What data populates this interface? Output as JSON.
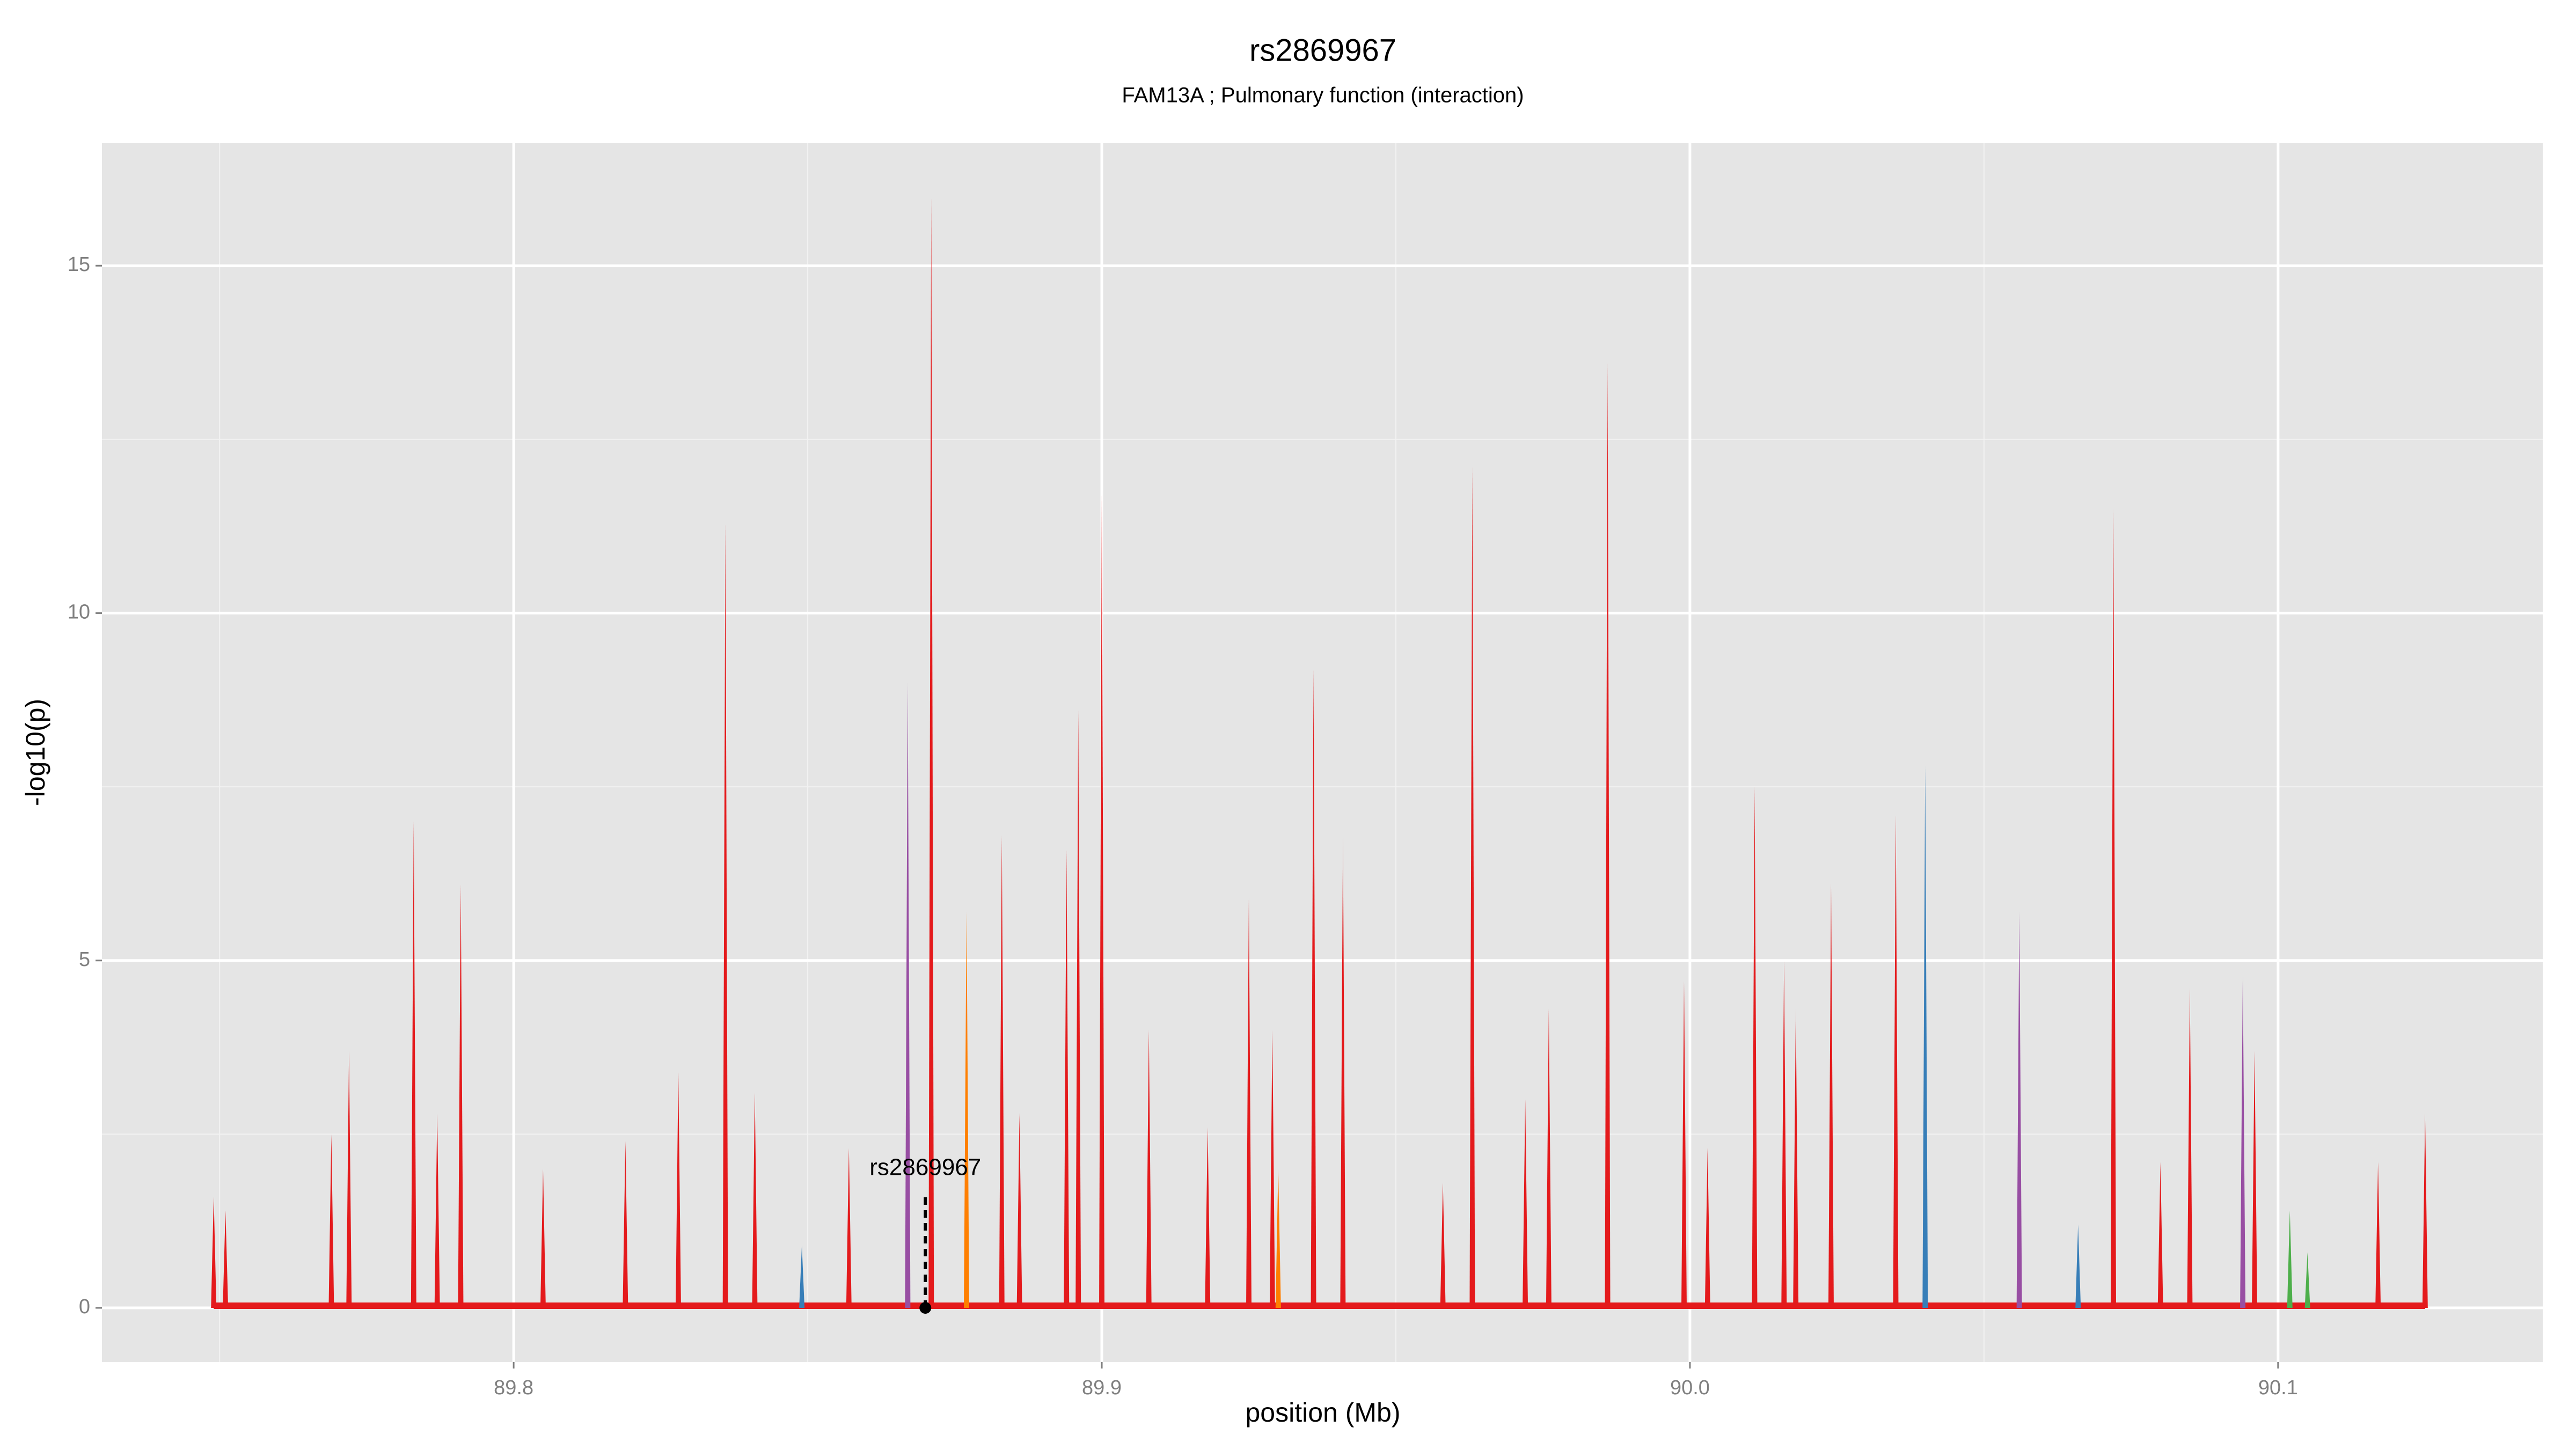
{
  "chart_data": {
    "type": "spike",
    "title": "rs2869967",
    "subtitle": "FAM13A ; Pulmonary function (interaction)",
    "x_label": "position (Mb)",
    "y_label": "-log10(p)",
    "xlim": [
      89.73,
      90.145
    ],
    "ylim": [
      -0.78,
      16.77
    ],
    "xticks": [
      89.8,
      89.9,
      {
        "value": 90,
        "label": "90.0"
      },
      90.1
    ],
    "yticks": [
      0,
      5,
      10,
      15
    ],
    "xminorticks": [
      89.75,
      89.85,
      89.95,
      90.05
    ],
    "yminorticks": [
      2.5,
      7.5,
      12.5
    ],
    "grid": true,
    "series": [
      {
        "color": "#e41a1c",
        "x": [
          89.749,
          89.751,
          89.769,
          89.772,
          89.783,
          89.787,
          89.791,
          89.805,
          89.819,
          89.828,
          89.836,
          89.841,
          89.857,
          89.871,
          89.883,
          89.886,
          89.894,
          89.896,
          89.9,
          89.908,
          89.918,
          89.925,
          89.929,
          89.936,
          89.941,
          89.958,
          89.963,
          89.972,
          89.976,
          89.986,
          89.999,
          90.003,
          90.011,
          90.016,
          90.018,
          90.024,
          90.035,
          90.072,
          90.08,
          90.085,
          90.096,
          90.117,
          90.125
        ],
        "values": [
          1.6,
          1.4,
          2.5,
          3.7,
          7.0,
          2.8,
          6.1,
          2.0,
          2.4,
          3.4,
          11.3,
          3.1,
          2.3,
          16.0,
          6.8,
          2.8,
          6.6,
          8.6,
          11.8,
          4.0,
          2.6,
          5.9,
          4.0,
          9.2,
          6.8,
          1.8,
          12.1,
          3.0,
          4.3,
          13.6,
          4.7,
          2.3,
          7.5,
          5.0,
          4.3,
          6.1,
          7.1,
          11.5,
          2.1,
          4.6,
          3.7,
          2.1,
          2.8
        ]
      },
      {
        "color": "#984ea3",
        "x": [
          89.867,
          90.056,
          90.094
        ],
        "values": [
          9.0,
          5.7,
          4.8
        ]
      },
      {
        "color": "#ff7f00",
        "x": [
          89.877,
          89.93
        ],
        "values": [
          5.7,
          2.0
        ]
      },
      {
        "color": "#377eb8",
        "x": [
          89.849,
          90.04,
          90.066
        ],
        "values": [
          0.9,
          7.8,
          1.2
        ]
      },
      {
        "color": "#4daf4a",
        "x": [
          90.102,
          90.105
        ],
        "values": [
          1.4,
          0.8
        ]
      }
    ],
    "annotation": {
      "text": "rs2869967",
      "x": 89.87,
      "y": 0,
      "line_top": 1.6,
      "label_y": 2.0
    }
  }
}
